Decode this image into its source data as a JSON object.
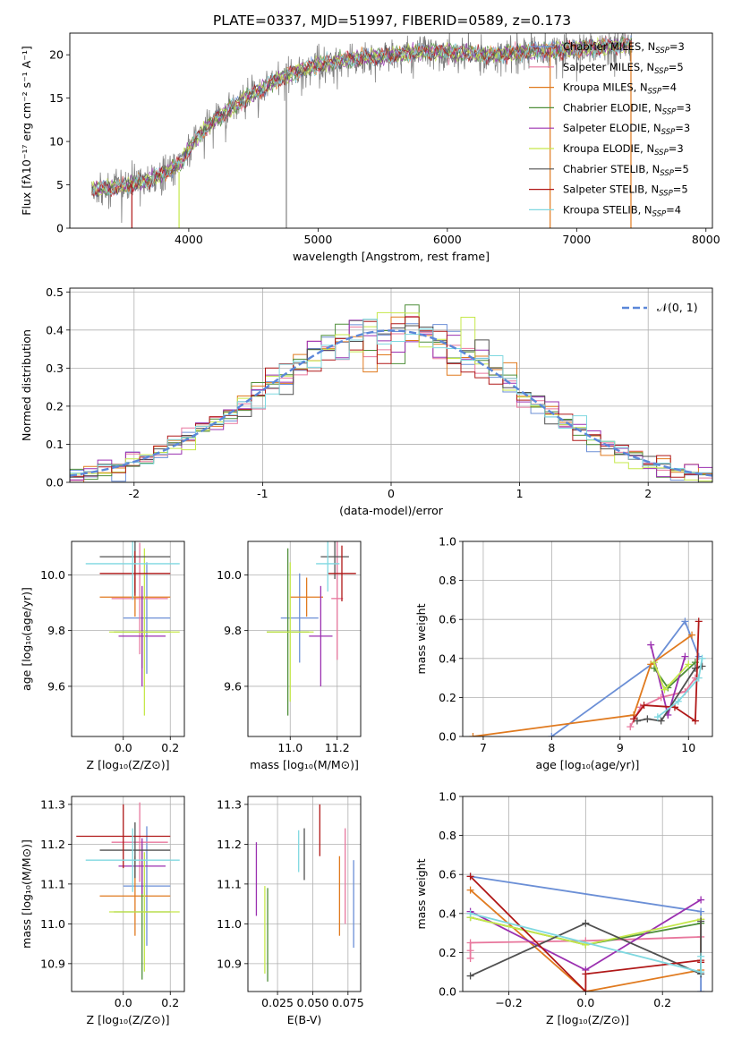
{
  "title": "PLATE=0337, MJD=51997, FIBERID=0589, z=0.173",
  "series": [
    {
      "name": "Chabrier MILES, N",
      "sub": "SSP",
      "n": "=3",
      "color": "#6b8fd6"
    },
    {
      "name": "Salpeter MILES, N",
      "sub": "SSP",
      "n": "=5",
      "color": "#e8779d"
    },
    {
      "name": "Kroupa MILES, N",
      "sub": "SSP",
      "n": "=4",
      "color": "#e07a1f"
    },
    {
      "name": "Chabrier ELODIE, N",
      "sub": "SSP",
      "n": "=3",
      "color": "#4f8f3a"
    },
    {
      "name": "Salpeter ELODIE, N",
      "sub": "SSP",
      "n": "=3",
      "color": "#9b30b0"
    },
    {
      "name": "Kroupa ELODIE, N",
      "sub": "SSP",
      "n": "=3",
      "color": "#c5e84a"
    },
    {
      "name": "Chabrier STELIB, N",
      "sub": "SSP",
      "n": "=5",
      "color": "#505050"
    },
    {
      "name": "Salpeter STELIB, N",
      "sub": "SSP",
      "n": "=5",
      "color": "#b01818"
    },
    {
      "name": "Kroupa STELIB, N",
      "sub": "SSP",
      "n": "=4",
      "color": "#7fd8e0"
    }
  ],
  "chart_data": [
    {
      "id": "spectrum",
      "type": "line",
      "xlabel": "wavelength [Angstrom, rest frame]",
      "ylabel": "Flux [fλ10⁻¹⁷ erg cm⁻² s⁻¹ A⁻¹]",
      "xlim": [
        3080,
        8050
      ],
      "ylim": [
        0,
        22.5
      ],
      "xticks": [
        4000,
        5000,
        6000,
        7000,
        8000
      ],
      "yticks": [
        0,
        5,
        10,
        15,
        20
      ],
      "data_color": "#808080",
      "continuum": {
        "x": [
          3250,
          3400,
          3550,
          3700,
          3850,
          3950,
          4050,
          4200,
          4350,
          4500,
          4700,
          4900,
          5100,
          5300,
          5500,
          5700,
          5900,
          6100,
          6300,
          6500,
          6700,
          6900,
          7100,
          7300,
          7430
        ],
        "y": [
          4.5,
          4.6,
          5.0,
          5.6,
          6.6,
          7.8,
          10.2,
          12.5,
          14.0,
          15.5,
          17.2,
          18.4,
          19.2,
          19.6,
          19.8,
          20.2,
          20.4,
          20.2,
          20.0,
          20.2,
          20.4,
          20.6,
          20.8,
          21.0,
          21.2
        ]
      },
      "spikes": [
        {
          "x": 3560,
          "ymin": 0,
          "ymax": 5.5,
          "color": "#b01818"
        },
        {
          "x": 3925,
          "ymin": 0,
          "ymax": 6.5,
          "color": "#c5e84a"
        },
        {
          "x": 4755,
          "ymin": 0,
          "ymax": 19.0,
          "color": "#808080"
        },
        {
          "x": 6795,
          "ymin": 0,
          "ymax": 21.0,
          "color": "#e07a1f"
        },
        {
          "x": 7420,
          "ymin": 0,
          "ymax": 21.5,
          "color": "#e07a1f"
        }
      ]
    },
    {
      "id": "residuals",
      "type": "histogram",
      "xlabel": "(data-model)/error",
      "ylabel": "Normed distribution",
      "xlim": [
        -2.5,
        2.5
      ],
      "ylim": [
        0,
        0.51
      ],
      "xticks": [
        -2,
        -1,
        0,
        1,
        2
      ],
      "yticks": [
        0.0,
        0.1,
        0.2,
        0.3,
        0.4,
        0.5
      ],
      "bins": 46,
      "gaussian_label": "𝒩(0, 1)",
      "gaussian_color": "#5b87d9"
    },
    {
      "id": "age_vs_Z",
      "type": "errorbar",
      "xlabel": "Z [log₁₀(Z/Z⊙)]",
      "ylabel": "age  [log₁₀(age/yr)]",
      "xlim": [
        -0.22,
        0.26
      ],
      "ylim": [
        9.42,
        10.12
      ],
      "xticks": [
        0.0,
        0.2
      ],
      "yticks": [
        9.6,
        9.8,
        10.0
      ],
      "points": [
        {
          "s": 0,
          "x": 0.1,
          "xe": 0.1,
          "y": 9.845,
          "ye": 0.2
        },
        {
          "s": 1,
          "x": 0.07,
          "xe": 0.12,
          "y": 9.915,
          "ye": 0.2
        },
        {
          "s": 2,
          "x": 0.05,
          "xe": 0.15,
          "y": 9.92,
          "ye": 0.07
        },
        {
          "s": 3,
          "x": 0.08,
          "xe": 0.12,
          "y": 9.795,
          "ye": 0.13
        },
        {
          "s": 4,
          "x": 0.08,
          "xe": 0.1,
          "y": 9.78,
          "ye": 0.18
        },
        {
          "s": 5,
          "x": 0.09,
          "xe": 0.15,
          "y": 9.795,
          "ye": 0.3
        },
        {
          "s": 6,
          "x": 0.05,
          "xe": 0.15,
          "y": 10.065,
          "ye": 0.13
        },
        {
          "s": 7,
          "x": 0.05,
          "xe": 0.15,
          "y": 10.005,
          "ye": 0.08
        },
        {
          "s": 8,
          "x": 0.04,
          "xe": 0.2,
          "y": 10.04,
          "ye": 0.13
        }
      ]
    },
    {
      "id": "age_vs_mass",
      "type": "errorbar",
      "xlabel": "mass [log₁₀(M/M⊙)]",
      "ylabel": "",
      "xlim": [
        10.82,
        11.3
      ],
      "ylim": [
        9.42,
        10.12
      ],
      "xticks": [
        11.0,
        11.2
      ],
      "yticks": [
        9.6,
        9.8,
        10.0
      ],
      "points": [
        {
          "s": 0,
          "x": 11.04,
          "xe": 0.08,
          "y": 9.845,
          "ye": 0.16
        },
        {
          "s": 1,
          "x": 11.2,
          "xe": 0.025,
          "y": 9.915,
          "ye": 0.22
        },
        {
          "s": 2,
          "x": 11.07,
          "xe": 0.07,
          "y": 9.92,
          "ye": 0.07
        },
        {
          "s": 3,
          "x": 10.99,
          "xe": 0.09,
          "y": 9.795,
          "ye": 0.3
        },
        {
          "s": 4,
          "x": 11.13,
          "xe": 0.05,
          "y": 9.78,
          "ye": 0.18
        },
        {
          "s": 5,
          "x": 11.0,
          "xe": 0.1,
          "y": 9.795,
          "ye": 0.25
        },
        {
          "s": 6,
          "x": 11.19,
          "xe": 0.06,
          "y": 10.065,
          "ye": 0.08
        },
        {
          "s": 7,
          "x": 11.22,
          "xe": 0.06,
          "y": 10.005,
          "ye": 0.1
        },
        {
          "s": 8,
          "x": 11.16,
          "xe": 0.05,
          "y": 10.04,
          "ye": 0.1
        }
      ]
    },
    {
      "id": "weight_vs_age",
      "type": "line",
      "xlabel": "age  [log₁₀(age/yr)]",
      "ylabel": "mass weight",
      "xlim": [
        6.7,
        10.35
      ],
      "ylim": [
        0,
        1.0
      ],
      "xticks": [
        7,
        8,
        9,
        10
      ],
      "yticks": [
        0.0,
        0.2,
        0.4,
        0.6,
        0.8,
        1.0
      ],
      "lines": [
        {
          "s": 0,
          "x": [
            8.0,
            9.5,
            9.95,
            10.15
          ],
          "y": [
            0.0,
            0.38,
            0.59,
            0.41
          ]
        },
        {
          "s": 1,
          "x": [
            9.15,
            9.3,
            9.6,
            9.95,
            10.1
          ],
          "y": [
            0.05,
            0.15,
            0.2,
            0.23,
            0.3
          ]
        },
        {
          "s": 2,
          "x": [
            6.85,
            9.2,
            9.45,
            10.05
          ],
          "y": [
            0.0,
            0.11,
            0.37,
            0.52
          ]
        },
        {
          "s": 3,
          "x": [
            9.5,
            9.7,
            10.1
          ],
          "y": [
            0.35,
            0.25,
            0.38
          ]
        },
        {
          "s": 4,
          "x": [
            9.45,
            9.7,
            9.95
          ],
          "y": [
            0.47,
            0.11,
            0.41
          ]
        },
        {
          "s": 5,
          "x": [
            9.5,
            9.65,
            10.0
          ],
          "y": [
            0.38,
            0.24,
            0.37
          ]
        },
        {
          "s": 6,
          "x": [
            9.25,
            9.4,
            9.6,
            10.1,
            10.2
          ],
          "y": [
            0.08,
            0.09,
            0.08,
            0.35,
            0.36
          ]
        },
        {
          "s": 7,
          "x": [
            9.2,
            9.35,
            9.8,
            10.1,
            10.15
          ],
          "y": [
            0.09,
            0.16,
            0.15,
            0.08,
            0.59
          ]
        },
        {
          "s": 8,
          "x": [
            9.55,
            9.85,
            10.15,
            10.2
          ],
          "y": [
            0.1,
            0.18,
            0.3,
            0.4
          ]
        }
      ]
    },
    {
      "id": "mass_vs_Z",
      "type": "errorbar",
      "xlabel": "Z [log₁₀(Z/Z⊙)]",
      "ylabel": "mass [log₁₀(M/M⊙)]",
      "xlim": [
        -0.22,
        0.26
      ],
      "ylim": [
        10.83,
        11.32
      ],
      "xticks": [
        0.0,
        0.2
      ],
      "yticks": [
        10.9,
        11.0,
        11.1,
        11.2,
        11.3
      ],
      "points": [
        {
          "s": 0,
          "x": 0.1,
          "xe": 0.1,
          "y": 11.095,
          "ye": 0.15
        },
        {
          "s": 1,
          "x": 0.07,
          "xe": 0.12,
          "y": 11.205,
          "ye": 0.1
        },
        {
          "s": 2,
          "x": 0.05,
          "xe": 0.15,
          "y": 11.07,
          "ye": 0.1
        },
        {
          "s": 3,
          "x": 0.08,
          "xe": 0.12,
          "y": 11.03,
          "ye": 0.17
        },
        {
          "s": 4,
          "x": 0.08,
          "xe": 0.1,
          "y": 11.145,
          "ye": 0.07
        },
        {
          "s": 5,
          "x": 0.09,
          "xe": 0.15,
          "y": 11.03,
          "ye": 0.15
        },
        {
          "s": 6,
          "x": 0.05,
          "xe": 0.15,
          "y": 11.185,
          "ye": 0.07
        },
        {
          "s": 7,
          "x": 0.0,
          "xe": 0.2,
          "y": 11.22,
          "ye": 0.08
        },
        {
          "s": 8,
          "x": 0.04,
          "xe": 0.2,
          "y": 11.16,
          "ye": 0.08
        }
      ]
    },
    {
      "id": "mass_vs_EBV",
      "type": "vlines",
      "xlabel": "E(B-V)",
      "ylabel": "",
      "xlim": [
        0.004,
        0.084
      ],
      "ylim": [
        10.83,
        11.32
      ],
      "xticks": [
        0.025,
        0.05,
        0.075
      ],
      "yticks": [
        10.9,
        11.0,
        11.1,
        11.2,
        11.3
      ],
      "points": [
        {
          "s": 0,
          "x": 0.079,
          "ylo": 10.94,
          "yhi": 11.16
        },
        {
          "s": 1,
          "x": 0.073,
          "ylo": 11.0,
          "yhi": 11.24
        },
        {
          "s": 2,
          "x": 0.069,
          "ylo": 10.97,
          "yhi": 11.17
        },
        {
          "s": 3,
          "x": 0.018,
          "ylo": 10.855,
          "yhi": 11.09
        },
        {
          "s": 4,
          "x": 0.01,
          "ylo": 11.02,
          "yhi": 11.205
        },
        {
          "s": 5,
          "x": 0.016,
          "ylo": 10.875,
          "yhi": 11.095
        },
        {
          "s": 6,
          "x": 0.044,
          "ylo": 11.11,
          "yhi": 11.24
        },
        {
          "s": 7,
          "x": 0.055,
          "ylo": 11.17,
          "yhi": 11.3
        },
        {
          "s": 8,
          "x": 0.04,
          "ylo": 11.13,
          "yhi": 11.235
        }
      ]
    },
    {
      "id": "weight_vs_Z",
      "type": "line",
      "xlabel": "Z [log₁₀(Z/Z⊙)]",
      "ylabel": "mass weight",
      "xlim": [
        -0.32,
        0.33
      ],
      "ylim": [
        0,
        1.0
      ],
      "xticks": [
        -0.2,
        0.0,
        0.2
      ],
      "yticks": [
        0.0,
        0.2,
        0.4,
        0.6,
        0.8,
        1.0
      ],
      "lines": [
        {
          "s": 0,
          "x": [
            -0.3,
            0.3,
            0.3
          ],
          "y": [
            0.59,
            0.41,
            0.0
          ]
        },
        {
          "s": 1,
          "x": [
            -0.3,
            -0.3,
            -0.3,
            0.0,
            0.3
          ],
          "y": [
            0.17,
            0.21,
            0.25,
            0.26,
            0.28
          ]
        },
        {
          "s": 2,
          "x": [
            -0.3,
            0.0,
            0.3,
            0.3
          ],
          "y": [
            0.52,
            0.0,
            0.11,
            0.37
          ]
        },
        {
          "s": 3,
          "x": [
            -0.3,
            0.0,
            0.3
          ],
          "y": [
            0.38,
            0.24,
            0.35
          ]
        },
        {
          "s": 4,
          "x": [
            -0.3,
            0.0,
            0.3
          ],
          "y": [
            0.41,
            0.11,
            0.47
          ]
        },
        {
          "s": 5,
          "x": [
            -0.3,
            0.0,
            0.3
          ],
          "y": [
            0.38,
            0.24,
            0.37
          ]
        },
        {
          "s": 6,
          "x": [
            -0.3,
            0.0,
            0.3,
            0.3
          ],
          "y": [
            0.08,
            0.35,
            0.09,
            0.36
          ]
        },
        {
          "s": 7,
          "x": [
            -0.3,
            0.0,
            0.0,
            0.3,
            0.3
          ],
          "y": [
            0.59,
            0.0,
            0.09,
            0.16,
            0.15
          ]
        },
        {
          "s": 8,
          "x": [
            -0.3,
            0.3,
            0.3
          ],
          "y": [
            0.4,
            0.1,
            0.18
          ]
        }
      ]
    }
  ]
}
